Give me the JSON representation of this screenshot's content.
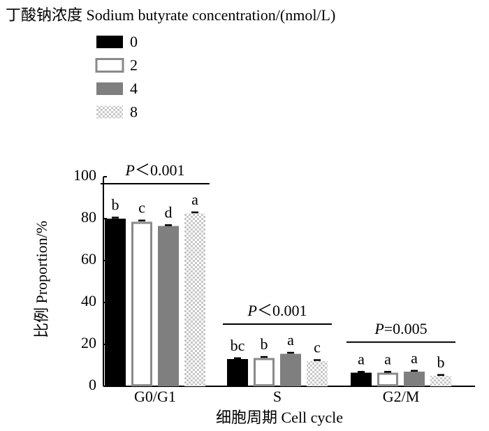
{
  "chart_data": {
    "type": "bar",
    "legend_title": "丁酸钠浓度 Sodium butyrate concentration/(nmol/L)",
    "legend_position": "top-left",
    "x_label": "细胞周期 Cell cycle",
    "y_label": "比例 Proportion/%",
    "categories": [
      "G0/G1",
      "S",
      "G2/M"
    ],
    "series": [
      {
        "name": "0",
        "color": "#000000",
        "style": "solid",
        "values": [
          80,
          13,
          6.5
        ],
        "errors": [
          0.5,
          0.4,
          0.4
        ],
        "letters": [
          "b",
          "bc",
          "a"
        ]
      },
      {
        "name": "2",
        "color": "#8a8a8a",
        "style": "outline",
        "values": [
          78.5,
          13.5,
          6.5
        ],
        "errors": [
          0.6,
          0.5,
          0.4
        ],
        "letters": [
          "c",
          "b",
          "a"
        ]
      },
      {
        "name": "4",
        "color": "#7f7f7f",
        "style": "solid",
        "values": [
          76.5,
          15.5,
          7
        ],
        "errors": [
          0.4,
          0.5,
          0.4
        ],
        "letters": [
          "d",
          "a",
          "a"
        ]
      },
      {
        "name": "8",
        "color": "#c8c8c8",
        "style": "checker",
        "values": [
          82.5,
          12,
          5
        ],
        "errors": [
          0.5,
          0.5,
          0.4
        ],
        "letters": [
          "a",
          "c",
          "b"
        ]
      }
    ],
    "p_annotations": [
      {
        "symbol": "P",
        "text": "＜0.001"
      },
      {
        "symbol": "P",
        "text": "＜0.001"
      },
      {
        "symbol": "P",
        "text": "=0.005"
      }
    ],
    "ylim": [
      0,
      100
    ],
    "yticks": [
      0,
      20,
      40,
      60,
      80,
      100
    ]
  }
}
